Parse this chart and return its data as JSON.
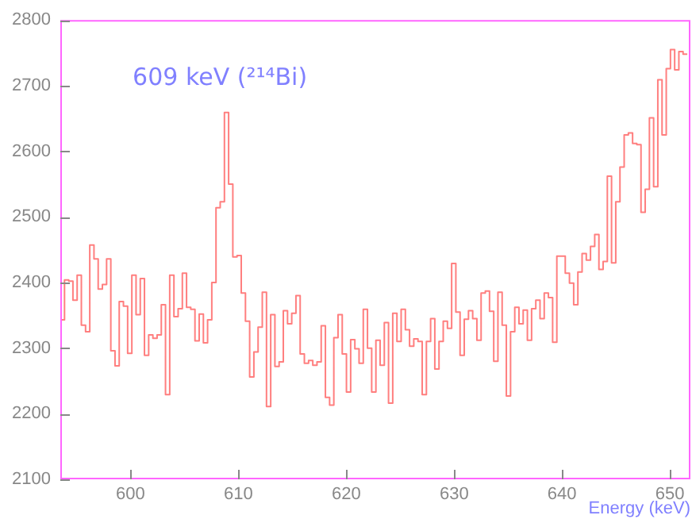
{
  "chart_data": {
    "type": "histogram",
    "title": "609 keV (²¹⁴Bi)",
    "xlabel": "Energy (keV)",
    "color": "#ff7f7f",
    "grid": false,
    "legend": false,
    "bins": [
      593.5,
      593.89,
      594.28,
      594.67,
      595.06,
      595.45,
      595.84,
      596.23,
      596.62,
      597.01,
      597.4,
      597.79,
      598.18,
      598.57,
      598.96,
      599.35,
      599.74,
      600.13,
      600.52,
      600.91,
      601.3,
      601.69,
      602.08,
      602.47,
      602.86,
      603.25,
      603.64,
      604.03,
      604.42,
      604.81,
      605.2,
      605.59,
      605.98,
      606.37,
      606.76,
      607.15,
      607.54,
      607.93,
      608.32,
      608.71,
      609.1,
      609.49,
      609.88,
      610.27,
      610.66,
      611.05,
      611.44,
      611.83,
      612.22,
      612.61,
      613.0,
      613.39,
      613.78,
      614.17,
      614.56,
      614.95,
      615.34,
      615.73,
      616.12,
      616.51,
      616.9,
      617.29,
      617.68,
      618.07,
      618.46,
      618.85,
      619.24,
      619.63,
      620.02,
      620.41,
      620.8,
      621.19,
      621.58,
      621.97,
      622.36,
      622.75,
      623.14,
      623.53,
      623.92,
      624.31,
      624.7,
      625.09,
      625.48,
      625.87,
      626.26,
      626.65,
      627.04,
      627.43,
      627.82,
      628.21,
      628.6,
      628.99,
      629.38,
      629.77,
      630.16,
      630.55,
      630.94,
      631.33,
      631.72,
      632.11,
      632.5,
      632.89,
      633.28,
      633.67,
      634.06,
      634.45,
      634.84,
      635.23,
      635.62,
      636.01,
      636.4,
      636.79,
      637.18,
      637.57,
      637.96,
      638.35,
      638.74,
      639.13,
      639.52,
      639.91,
      640.3,
      640.69,
      641.08,
      641.47,
      641.86,
      642.25,
      642.64,
      643.03,
      643.42,
      643.81,
      644.2,
      644.59,
      644.98,
      645.37,
      645.76,
      646.15,
      646.54,
      646.93,
      647.32,
      647.71,
      648.1,
      648.49,
      648.88,
      649.27,
      649.66,
      650.05,
      650.44,
      650.83,
      651.22,
      651.61
    ],
    "values": [
      2343,
      2404,
      2402,
      2373,
      2411,
      2335,
      2325,
      2457,
      2436,
      2390,
      2397,
      2436,
      2296,
      2273,
      2371,
      2364,
      2292,
      2411,
      2351,
      2406,
      2289,
      2320,
      2315,
      2320,
      2366,
      2229,
      2411,
      2348,
      2360,
      2414,
      2362,
      2359,
      2311,
      2352,
      2308,
      2343,
      2400,
      2514,
      2523,
      2659,
      2550,
      2439,
      2441,
      2384,
      2341,
      2256,
      2294,
      2332,
      2385,
      2211,
      2351,
      2272,
      2279,
      2357,
      2337,
      2353,
      2380,
      2291,
      2277,
      2281,
      2274,
      2279,
      2334,
      2225,
      2213,
      2316,
      2351,
      2291,
      2233,
      2313,
      2299,
      2277,
      2359,
      2300,
      2233,
      2312,
      2274,
      2339,
      2216,
      2353,
      2310,
      2359,
      2328,
      2303,
      2314,
      2310,
      2229,
      2310,
      2345,
      2268,
      2310,
      2341,
      2330,
      2429,
      2355,
      2289,
      2344,
      2357,
      2345,
      2312,
      2384,
      2387,
      2356,
      2280,
      2385,
      2335,
      2227,
      2325,
      2362,
      2337,
      2358,
      2312,
      2360,
      2373,
      2345,
      2384,
      2377,
      2309,
      2440,
      2440,
      2414,
      2399,
      2366,
      2416,
      2444,
      2434,
      2455,
      2473,
      2420,
      2432,
      2562,
      2430,
      2523,
      2576,
      2625,
      2628,
      2612,
      2610,
      2507,
      2542,
      2651,
      2546,
      2709,
      2625,
      2726,
      2755,
      2724,
      2752,
      2748
    ],
    "xlim": [
      593.5,
      651.9
    ],
    "xticks": [
      600,
      610,
      620,
      630,
      640,
      650
    ],
    "ylim": [
      2100,
      2800
    ],
    "yticks": [
      2100,
      2200,
      2300,
      2400,
      2500,
      2600,
      2700,
      2800
    ]
  }
}
